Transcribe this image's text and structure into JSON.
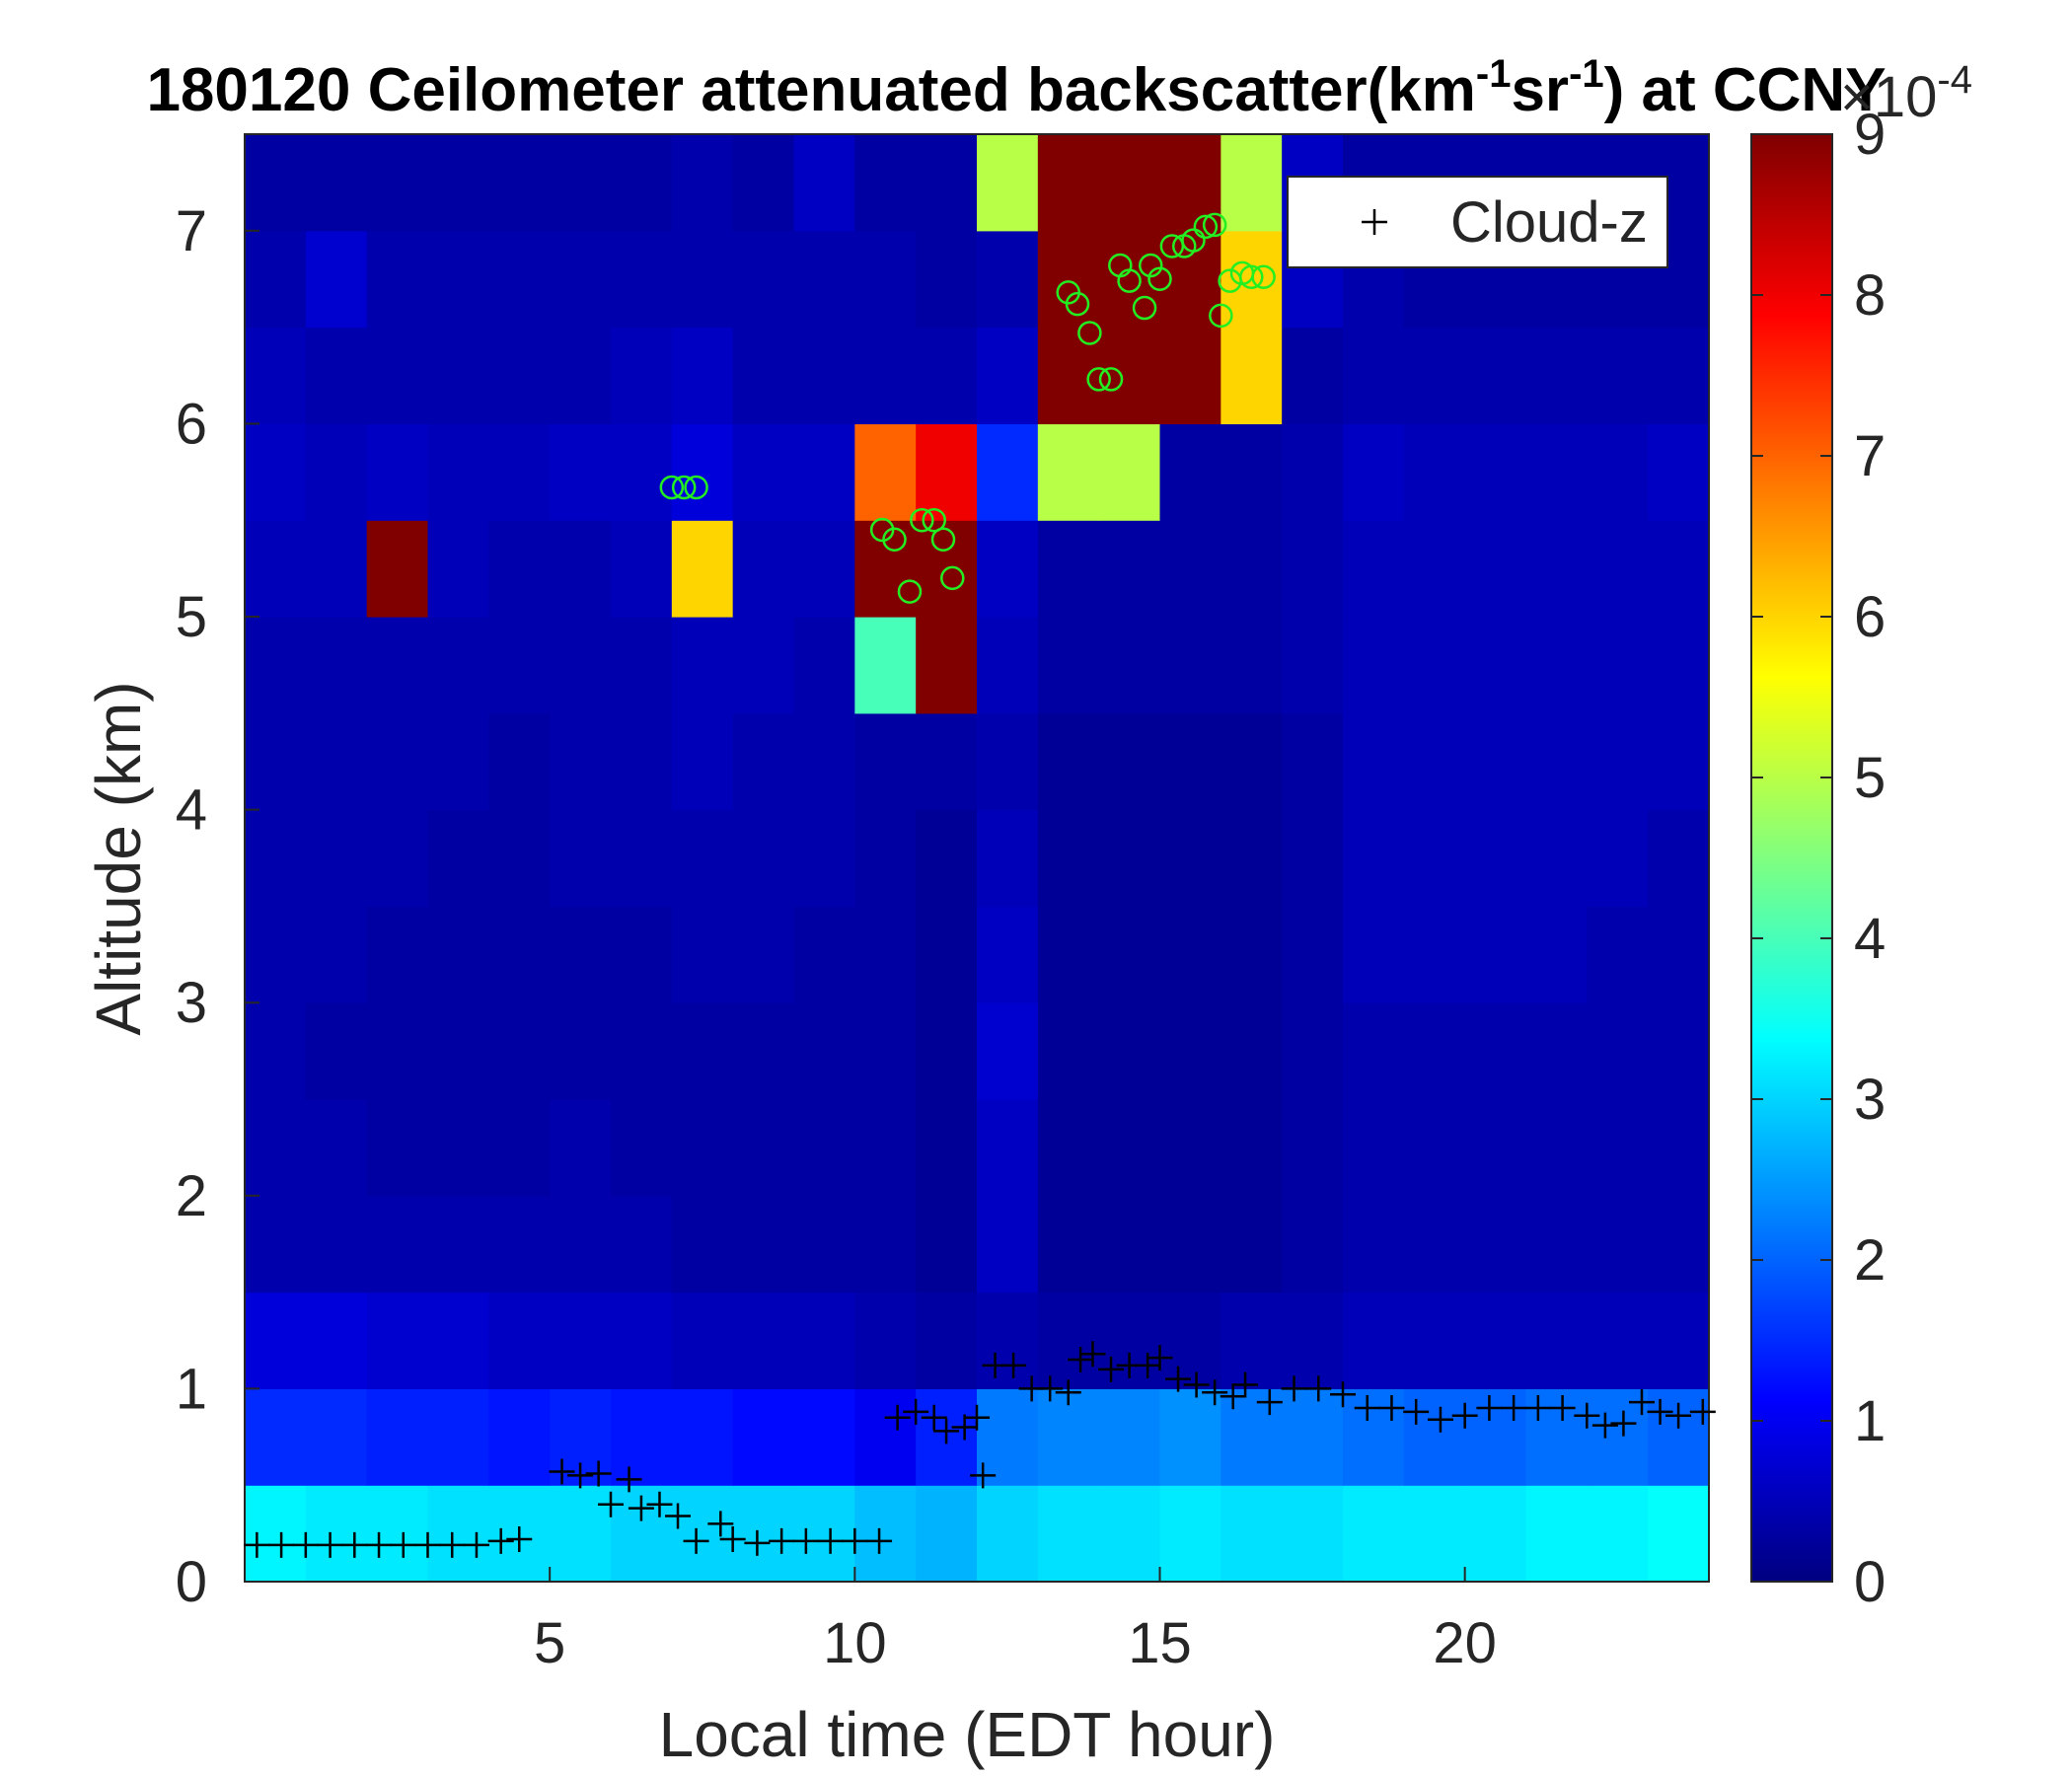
{
  "chart_data": {
    "type": "heatmap",
    "title": [
      "180120 Ceilometer attenuated backscatter(km",
      "-1",
      "sr",
      "-1",
      ") at CCNY"
    ],
    "xlabel": "Local time (EDT hour)",
    "ylabel": "Altitude (km)",
    "xlim": [
      0,
      24
    ],
    "ylim": [
      0,
      7.5
    ],
    "xticks": [
      5,
      10,
      15,
      20
    ],
    "yticks": [
      0,
      1,
      2,
      3,
      4,
      5,
      6,
      7
    ],
    "colormap": "jet",
    "clim": [
      0,
      9
    ],
    "cticks": [
      0,
      1,
      2,
      3,
      4,
      5,
      6,
      7,
      8,
      9
    ],
    "colorbar_label": [
      "×10",
      "-4"
    ],
    "legend": "northeast",
    "x": [
      0.5,
      1.5,
      2.5,
      3.5,
      4.5,
      5.5,
      6.5,
      7.5,
      8.5,
      9.5,
      10.5,
      11.5,
      12.5,
      13.5,
      14.5,
      15.5,
      16.5,
      17.5,
      18.5,
      19.5,
      20.5,
      21.5,
      22.5,
      23.5
    ],
    "y": [
      0.25,
      0.75,
      1.25,
      1.75,
      2.25,
      2.75,
      3.25,
      3.75,
      4.25,
      4.75,
      5.25,
      5.75,
      6.25,
      6.75,
      7.25
    ],
    "z": [
      [
        3.3,
        3.2,
        3.2,
        3.1,
        3.1,
        3.1,
        3.0,
        3.0,
        3.0,
        3.0,
        2.8,
        2.7,
        3.0,
        3.1,
        3.1,
        3.2,
        3.1,
        3.1,
        3.2,
        3.2,
        3.2,
        3.3,
        3.3,
        3.4
      ],
      [
        1.5,
        1.5,
        1.4,
        1.4,
        1.3,
        1.4,
        1.3,
        1.3,
        1.2,
        1.2,
        1.0,
        1.4,
        2.2,
        2.3,
        2.3,
        2.4,
        2.2,
        2.2,
        2.1,
        2.0,
        2.0,
        2.1,
        2.1,
        2.0
      ],
      [
        0.8,
        0.8,
        0.7,
        0.7,
        0.6,
        0.6,
        0.6,
        0.5,
        0.5,
        0.5,
        0.4,
        0.3,
        0.4,
        0.3,
        0.3,
        0.3,
        0.4,
        0.4,
        0.5,
        0.5,
        0.5,
        0.5,
        0.5,
        0.5
      ],
      [
        0.4,
        0.4,
        0.4,
        0.4,
        0.4,
        0.4,
        0.4,
        0.3,
        0.3,
        0.3,
        0.3,
        0.2,
        0.6,
        0.2,
        0.2,
        0.2,
        0.2,
        0.3,
        0.4,
        0.4,
        0.4,
        0.4,
        0.4,
        0.4
      ],
      [
        0.4,
        0.4,
        0.3,
        0.3,
        0.3,
        0.4,
        0.3,
        0.3,
        0.3,
        0.3,
        0.3,
        0.2,
        0.6,
        0.2,
        0.2,
        0.2,
        0.2,
        0.3,
        0.4,
        0.4,
        0.4,
        0.4,
        0.4,
        0.4
      ],
      [
        0.4,
        0.3,
        0.3,
        0.3,
        0.3,
        0.3,
        0.3,
        0.3,
        0.3,
        0.3,
        0.3,
        0.2,
        0.7,
        0.2,
        0.2,
        0.2,
        0.2,
        0.3,
        0.4,
        0.4,
        0.4,
        0.4,
        0.4,
        0.4
      ],
      [
        0.4,
        0.4,
        0.3,
        0.3,
        0.3,
        0.3,
        0.3,
        0.4,
        0.4,
        0.3,
        0.3,
        0.2,
        0.6,
        0.2,
        0.2,
        0.2,
        0.2,
        0.3,
        0.5,
        0.5,
        0.5,
        0.5,
        0.4,
        0.4
      ],
      [
        0.4,
        0.4,
        0.4,
        0.3,
        0.3,
        0.4,
        0.4,
        0.4,
        0.4,
        0.4,
        0.3,
        0.2,
        0.5,
        0.2,
        0.2,
        0.2,
        0.2,
        0.3,
        0.5,
        0.5,
        0.5,
        0.5,
        0.5,
        0.4
      ],
      [
        0.4,
        0.4,
        0.4,
        0.4,
        0.3,
        0.4,
        0.4,
        0.5,
        0.4,
        0.4,
        0.3,
        0.3,
        0.4,
        0.2,
        0.2,
        0.2,
        0.2,
        0.3,
        0.5,
        0.5,
        0.5,
        0.5,
        0.5,
        0.5
      ],
      [
        0.4,
        0.4,
        0.4,
        0.4,
        0.4,
        0.4,
        0.4,
        0.5,
        0.5,
        0.4,
        4.0,
        9.0,
        0.5,
        0.3,
        0.3,
        0.3,
        0.3,
        0.4,
        0.5,
        0.5,
        0.5,
        0.5,
        0.5,
        0.5
      ],
      [
        0.5,
        0.5,
        9.0,
        0.5,
        0.4,
        0.4,
        0.5,
        6.0,
        0.5,
        0.5,
        9.0,
        9.0,
        0.6,
        0.3,
        0.3,
        0.3,
        0.3,
        0.4,
        0.5,
        0.5,
        0.5,
        0.5,
        0.5,
        0.5
      ],
      [
        0.6,
        0.5,
        0.6,
        0.5,
        0.5,
        0.6,
        0.6,
        0.8,
        0.6,
        0.6,
        7.0,
        8.0,
        1.5,
        5.0,
        5.0,
        0.3,
        0.3,
        0.4,
        0.6,
        0.5,
        0.5,
        0.5,
        0.5,
        0.6
      ],
      [
        0.5,
        0.4,
        0.4,
        0.4,
        0.4,
        0.4,
        0.5,
        0.6,
        0.4,
        0.4,
        0.4,
        0.4,
        0.6,
        9.0,
        9.0,
        9.0,
        6.0,
        0.3,
        0.4,
        0.4,
        0.4,
        0.4,
        0.4,
        0.4
      ],
      [
        0.4,
        0.7,
        0.4,
        0.4,
        0.4,
        0.4,
        0.4,
        0.4,
        0.4,
        0.4,
        0.4,
        0.3,
        0.4,
        9.0,
        9.0,
        9.0,
        6.0,
        0.6,
        0.4,
        0.3,
        0.3,
        0.3,
        0.3,
        0.3
      ],
      [
        0.3,
        0.3,
        0.3,
        0.3,
        0.3,
        0.3,
        0.3,
        0.4,
        0.3,
        0.6,
        0.3,
        0.3,
        5.0,
        9.0,
        9.0,
        9.0,
        5.0,
        0.6,
        0.3,
        0.3,
        0.3,
        0.3,
        0.3,
        0.3
      ]
    ],
    "series": [
      {
        "name": "Cloud-z",
        "marker": "+",
        "color": "#000000",
        "x": [
          0.2,
          0.6,
          1.0,
          1.4,
          1.8,
          2.2,
          2.6,
          3.0,
          3.4,
          3.8,
          4.2,
          4.5,
          5.2,
          5.5,
          5.8,
          6.0,
          6.3,
          6.5,
          6.8,
          7.1,
          7.4,
          7.8,
          8.0,
          8.4,
          8.8,
          9.2,
          9.6,
          10.0,
          10.4,
          10.7,
          11.0,
          11.3,
          11.5,
          11.8,
          12.0,
          12.1,
          12.3,
          12.6,
          12.9,
          13.2,
          13.5,
          13.7,
          13.9,
          14.2,
          14.5,
          14.8,
          15.0,
          15.3,
          15.6,
          15.9,
          16.2,
          16.4,
          16.8,
          17.2,
          17.6,
          18.0,
          18.4,
          18.8,
          19.2,
          19.6,
          20.0,
          20.4,
          20.8,
          21.2,
          21.6,
          22.0,
          22.3,
          22.6,
          22.9,
          23.2,
          23.5,
          23.9
        ],
        "values": [
          0.19,
          0.19,
          0.19,
          0.19,
          0.19,
          0.19,
          0.19,
          0.19,
          0.19,
          0.19,
          0.21,
          0.22,
          0.57,
          0.55,
          0.56,
          0.4,
          0.53,
          0.38,
          0.4,
          0.34,
          0.21,
          0.3,
          0.22,
          0.2,
          0.21,
          0.21,
          0.21,
          0.21,
          0.21,
          0.85,
          0.88,
          0.85,
          0.78,
          0.8,
          0.85,
          0.55,
          1.12,
          1.12,
          1.0,
          1.0,
          0.98,
          1.15,
          1.18,
          1.1,
          1.12,
          1.12,
          1.16,
          1.05,
          1.02,
          0.98,
          0.96,
          1.02,
          0.93,
          1.0,
          1.0,
          0.97,
          0.9,
          0.9,
          0.88,
          0.84,
          0.86,
          0.9,
          0.9,
          0.9,
          0.9,
          0.86,
          0.81,
          0.82,
          0.93,
          0.88,
          0.86,
          0.88
        ]
      },
      {
        "marker": "o",
        "color": "#22ee22",
        "x": [
          7.0,
          7.2,
          7.4,
          10.45,
          10.65,
          10.9,
          11.1,
          11.3,
          11.45,
          11.6,
          13.5,
          13.65,
          13.85,
          14.0,
          14.2,
          14.35,
          14.5,
          14.75,
          14.85,
          15.0,
          15.2,
          15.4,
          15.55,
          15.75,
          15.9,
          16.0,
          16.15,
          16.35,
          16.5,
          16.7
        ],
        "values": [
          5.67,
          5.67,
          5.67,
          5.45,
          5.4,
          5.13,
          5.5,
          5.5,
          5.4,
          5.2,
          6.68,
          6.62,
          6.47,
          6.23,
          6.23,
          6.82,
          6.74,
          6.6,
          6.82,
          6.75,
          6.92,
          6.92,
          6.95,
          7.02,
          7.03,
          6.56,
          6.74,
          6.78,
          6.76,
          6.76
        ]
      }
    ]
  }
}
